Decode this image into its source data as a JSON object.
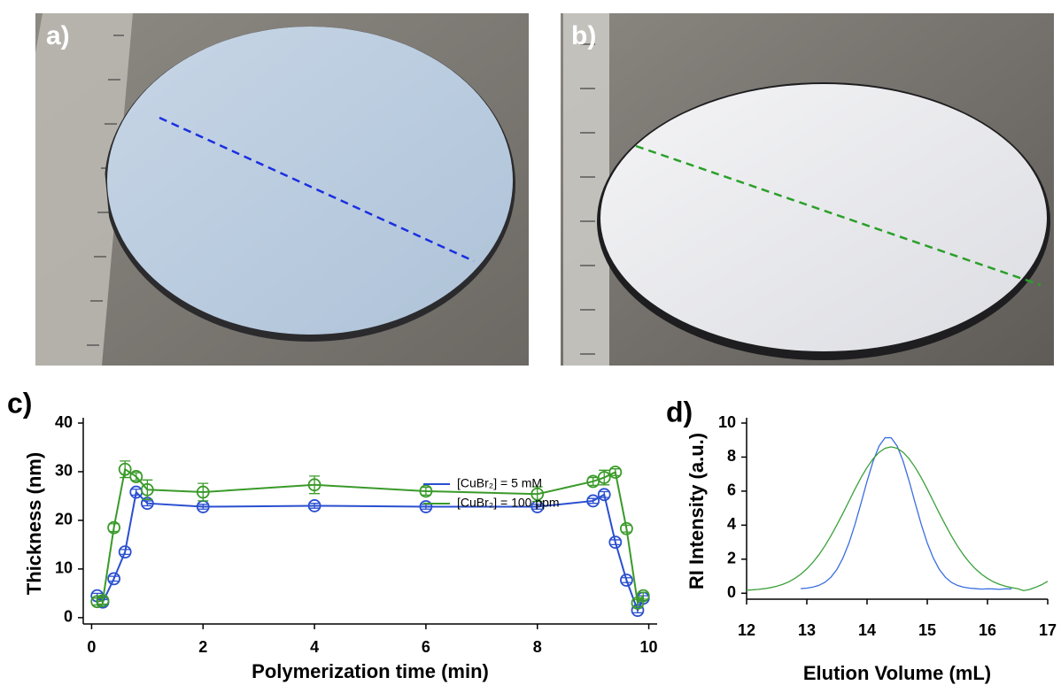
{
  "panel_labels": {
    "a": "a)",
    "b": "b)"
  },
  "chart_data": [
    {
      "type": "line",
      "panel_label": "c)",
      "xlabel": "Polymerization time (min)",
      "ylabel": "Thickness (nm)",
      "xlim": [
        -0.15,
        10.15
      ],
      "ylim": [
        -1.3,
        40
      ],
      "xticks": [
        0,
        2,
        4,
        6,
        8,
        10
      ],
      "yticks": [
        0,
        10,
        20,
        30,
        40
      ],
      "grid": false,
      "markers": "open-circle",
      "legend": "upper right",
      "x": [
        0.1,
        0.2,
        0.4,
        0.6,
        0.8,
        1,
        2,
        4,
        6,
        8,
        9,
        9.2,
        9.4,
        9.6,
        9.8,
        9.9
      ],
      "series": [
        {
          "name": "[CuBr₂] = 5 mM",
          "color": "#2a4fd0",
          "values": [
            4.5,
            3.2,
            8,
            13.5,
            25.8,
            23.5,
            22.8,
            23,
            22.8,
            22.8,
            24,
            25.3,
            15.5,
            7.7,
            1.5,
            4
          ],
          "errors": [
            0.5,
            0.5,
            0.5,
            0.5,
            0.6,
            0.5,
            0.5,
            0.5,
            0.5,
            0.5,
            0.5,
            0.6,
            0.5,
            0.5,
            0.5,
            0.5
          ]
        },
        {
          "name": "[CuBr₂] = 100 ppm",
          "color": "#3a9a2a",
          "values": [
            3.3,
            3.5,
            18.5,
            30.5,
            29,
            26.3,
            25.8,
            27.3,
            26,
            25.4,
            28,
            28.8,
            29.9,
            18.3,
            3,
            4.5
          ],
          "errors": [
            0.7,
            0.7,
            0.8,
            1.7,
            0.8,
            2,
            1.8,
            1.8,
            0.8,
            1.5,
            0.8,
            1.5,
            0.7,
            0.7,
            0.7,
            0.7
          ]
        }
      ]
    },
    {
      "type": "line",
      "panel_label": "d)",
      "xlabel": "Elution Volume (mL)",
      "ylabel": "RI Intensity (a.u.)",
      "xlim": [
        12,
        17
      ],
      "ylim": [
        -0.35,
        10
      ],
      "xticks": [
        12,
        13,
        14,
        15,
        16,
        17
      ],
      "yticks": [
        0,
        2,
        4,
        6,
        8,
        10
      ],
      "grid": false,
      "series": [
        {
          "color": "#3a6ee0",
          "x": [
            12.9,
            13.0,
            13.1,
            13.2,
            13.3,
            13.4,
            13.5,
            13.6,
            13.7,
            13.8,
            13.9,
            14.0,
            14.1,
            14.2,
            14.3,
            14.4,
            14.5,
            14.6,
            14.7,
            14.8,
            14.9,
            15.0,
            15.1,
            15.2,
            15.3,
            15.4,
            15.5,
            15.6,
            15.7,
            15.8,
            15.9,
            16.0,
            16.1,
            16.2,
            16.3,
            16.4
          ],
          "values": [
            0.27,
            0.3,
            0.36,
            0.46,
            0.64,
            0.94,
            1.4,
            2.07,
            2.95,
            4.05,
            5.29,
            6.58,
            7.75,
            8.65,
            9.14,
            9.14,
            8.65,
            7.75,
            6.58,
            5.29,
            4.05,
            2.95,
            2.07,
            1.4,
            0.94,
            0.64,
            0.46,
            0.36,
            0.3,
            0.27,
            0.24,
            0.26,
            0.25,
            0.23,
            0.26,
            0.25
          ]
        },
        {
          "color": "#3aa03a",
          "x": [
            12.0,
            12.1,
            12.2,
            12.3,
            12.4,
            12.5,
            12.6,
            12.7,
            12.8,
            12.9,
            13.0,
            13.1,
            13.2,
            13.3,
            13.4,
            13.5,
            13.6,
            13.7,
            13.8,
            13.9,
            14.0,
            14.1,
            14.2,
            14.3,
            14.4,
            14.5,
            14.6,
            14.7,
            14.8,
            14.9,
            15.0,
            15.1,
            15.2,
            15.3,
            15.4,
            15.5,
            15.6,
            15.7,
            15.8,
            15.9,
            16.0,
            16.1,
            16.2,
            16.3,
            16.4,
            16.5,
            16.6,
            16.7,
            16.8,
            16.9,
            17.0
          ],
          "values": [
            0.18,
            0.2,
            0.23,
            0.27,
            0.33,
            0.41,
            0.52,
            0.67,
            0.87,
            1.12,
            1.43,
            1.81,
            2.26,
            2.78,
            3.37,
            4.02,
            4.7,
            5.41,
            6.12,
            6.79,
            7.39,
            7.9,
            8.28,
            8.52,
            8.6,
            8.52,
            8.28,
            7.9,
            7.39,
            6.79,
            6.12,
            5.41,
            4.7,
            4.02,
            3.37,
            2.78,
            2.26,
            1.81,
            1.43,
            1.12,
            0.87,
            0.67,
            0.52,
            0.41,
            0.33,
            0.27,
            0.15,
            0.22,
            0.35,
            0.5,
            0.7
          ]
        }
      ]
    }
  ]
}
